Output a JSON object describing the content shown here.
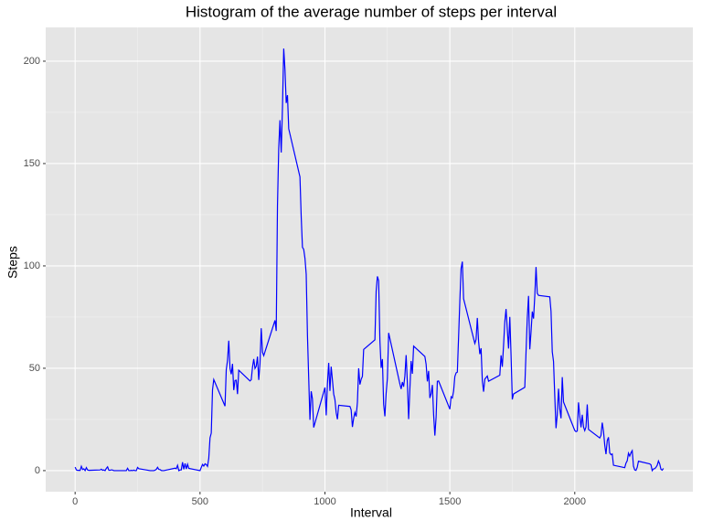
{
  "chart_data": {
    "type": "line",
    "title": "Histogram of the average number of steps per interval",
    "x_label": "Interval",
    "y_label": "Steps",
    "xlim": [
      -117.75,
      2472.75
    ],
    "ylim": [
      -10.3,
      216.5
    ],
    "xticks": [
      0,
      500,
      1000,
      1500,
      2000
    ],
    "yticks": [
      0,
      50,
      100,
      150,
      200
    ],
    "grid": true,
    "x": [
      0,
      5,
      10,
      15,
      20,
      25,
      30,
      35,
      40,
      45,
      50,
      55,
      100,
      105,
      110,
      115,
      120,
      125,
      130,
      135,
      140,
      145,
      150,
      155,
      200,
      205,
      210,
      215,
      220,
      225,
      230,
      235,
      240,
      245,
      250,
      255,
      300,
      305,
      310,
      315,
      320,
      325,
      330,
      335,
      340,
      345,
      350,
      355,
      400,
      405,
      410,
      415,
      420,
      425,
      430,
      435,
      440,
      445,
      450,
      455,
      500,
      505,
      510,
      515,
      520,
      525,
      530,
      535,
      540,
      545,
      550,
      555,
      600,
      605,
      610,
      615,
      620,
      625,
      630,
      635,
      640,
      645,
      650,
      655,
      700,
      705,
      710,
      715,
      720,
      725,
      730,
      735,
      740,
      745,
      750,
      755,
      800,
      805,
      810,
      815,
      820,
      825,
      830,
      835,
      840,
      845,
      850,
      855,
      900,
      905,
      910,
      915,
      920,
      925,
      930,
      935,
      940,
      945,
      950,
      955,
      1000,
      1005,
      1010,
      1015,
      1020,
      1025,
      1030,
      1035,
      1040,
      1045,
      1050,
      1055,
      1100,
      1105,
      1110,
      1115,
      1120,
      1125,
      1130,
      1135,
      1140,
      1145,
      1150,
      1155,
      1200,
      1205,
      1210,
      1215,
      1220,
      1225,
      1230,
      1235,
      1240,
      1245,
      1250,
      1255,
      1300,
      1305,
      1310,
      1315,
      1320,
      1325,
      1330,
      1335,
      1340,
      1345,
      1350,
      1355,
      1400,
      1405,
      1410,
      1415,
      1420,
      1425,
      1430,
      1435,
      1440,
      1445,
      1450,
      1455,
      1500,
      1505,
      1510,
      1515,
      1520,
      1525,
      1530,
      1535,
      1540,
      1545,
      1550,
      1555,
      1600,
      1605,
      1610,
      1615,
      1620,
      1625,
      1630,
      1635,
      1640,
      1645,
      1650,
      1655,
      1700,
      1705,
      1710,
      1715,
      1720,
      1725,
      1730,
      1735,
      1740,
      1745,
      1750,
      1755,
      1800,
      1805,
      1810,
      1815,
      1820,
      1825,
      1830,
      1835,
      1840,
      1845,
      1850,
      1855,
      1900,
      1905,
      1910,
      1915,
      1920,
      1925,
      1930,
      1935,
      1940,
      1945,
      1950,
      1955,
      2000,
      2005,
      2010,
      2015,
      2020,
      2025,
      2030,
      2035,
      2040,
      2045,
      2050,
      2055,
      2100,
      2105,
      2110,
      2115,
      2120,
      2125,
      2130,
      2135,
      2140,
      2145,
      2150,
      2155,
      2200,
      2205,
      2210,
      2215,
      2220,
      2225,
      2230,
      2235,
      2240,
      2245,
      2250,
      2255,
      2300,
      2305,
      2310,
      2315,
      2320,
      2325,
      2330,
      2335,
      2340,
      2345,
      2350,
      2355
    ],
    "series": [
      {
        "name": "steps",
        "color": "#0000ff",
        "values": [
          1.72,
          0.34,
          0.13,
          0.15,
          0.08,
          2.09,
          0.53,
          0.87,
          0,
          1.47,
          0.3,
          0.13,
          0.32,
          0.68,
          0.15,
          0.34,
          0,
          1.11,
          1.83,
          0.17,
          0.17,
          0.38,
          0.26,
          0,
          0,
          0,
          1.13,
          0,
          0,
          0.13,
          0,
          0.23,
          0,
          0,
          1.55,
          0.94,
          0,
          0,
          0,
          0,
          0.21,
          0.62,
          1.62,
          0.58,
          0.49,
          0.08,
          0,
          0,
          1.19,
          0.94,
          2.57,
          0,
          0.34,
          0.36,
          4.11,
          0.66,
          3.49,
          0.83,
          3.11,
          1.11,
          0,
          1.57,
          3,
          2.25,
          3.32,
          2.96,
          2.09,
          6.06,
          16.02,
          18.34,
          39.45,
          44.49,
          31.49,
          49.26,
          53.77,
          63.45,
          49.96,
          47.08,
          52.15,
          39.34,
          44.02,
          44.17,
          37.36,
          49.04,
          43.81,
          44.38,
          50.51,
          54.51,
          49.92,
          50.98,
          55.68,
          44.32,
          52.26,
          69.55,
          57.85,
          56.15,
          73.38,
          68.21,
          129.43,
          157.53,
          171.15,
          155.4,
          177.3,
          206.17,
          195.92,
          179.57,
          183.4,
          167.02,
          143.45,
          124.04,
          109.11,
          108.11,
          103.72,
          95.96,
          66.21,
          45.23,
          24.79,
          38.75,
          34.98,
          21.06,
          40.57,
          26.98,
          42.42,
          52.66,
          38.92,
          50.79,
          44.28,
          37.42,
          34.7,
          28.34,
          25.09,
          31.94,
          31.36,
          29.68,
          21.32,
          25.55,
          28.38,
          26.47,
          33.43,
          49.98,
          42.04,
          44.6,
          46.04,
          59.19,
          63.87,
          87.7,
          94.85,
          92.77,
          63.4,
          50.17,
          54.47,
          32.42,
          26.53,
          37.74,
          45.06,
          67.28,
          42.34,
          39.88,
          43.26,
          40.98,
          46.25,
          56.43,
          42.75,
          25.13,
          39.96,
          53.55,
          47.32,
          60.81,
          55.75,
          51.96,
          43.58,
          48.7,
          35.47,
          37.55,
          41.85,
          27.51,
          17.11,
          26.08,
          43.62,
          43.77,
          30.02,
          36.08,
          35.49,
          38.85,
          45.96,
          47.75,
          48.13,
          65.32,
          82.91,
          98.66,
          102.11,
          83.96,
          62.13,
          64.13,
          74.55,
          63.17,
          56.91,
          59.77,
          43.87,
          38.57,
          44.66,
          45.45,
          46.21,
          43.68,
          46.62,
          56.3,
          50.72,
          61.23,
          72.72,
          78.94,
          68.94,
          59.66,
          75.09,
          56.51,
          34.77,
          37.45,
          40.68,
          58.02,
          74.7,
          85.32,
          59.26,
          67.77,
          77.7,
          74.25,
          85.34,
          99.45,
          86.58,
          85.6,
          84.87,
          77.83,
          58.04,
          53.36,
          36.32,
          20.72,
          27.4,
          40.02,
          30.21,
          25.55,
          45.66,
          33.53,
          19.62,
          19.02,
          19.34,
          33.34,
          26.81,
          21.17,
          27.3,
          21.34,
          19.55,
          21.32,
          32.3,
          20.15,
          15.94,
          17.23,
          23.45,
          19.25,
          12.45,
          8.02,
          14.66,
          16.3,
          8.68,
          7.79,
          8.13,
          2.62,
          1.45,
          3.68,
          4.81,
          8.51,
          7.08,
          8.7,
          9.75,
          2.21,
          0.32,
          0.11,
          1.6,
          4.6,
          3.3,
          2.85,
          0,
          0.83,
          0.96,
          1.58,
          2.6,
          4.7,
          3.3,
          0.64,
          0.23,
          1.08
        ]
      }
    ]
  }
}
